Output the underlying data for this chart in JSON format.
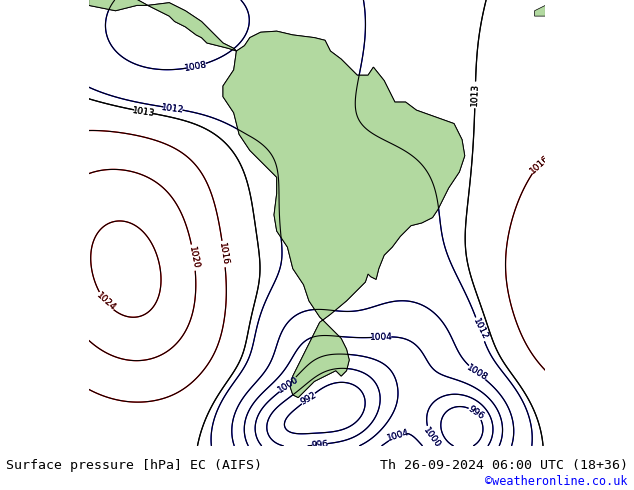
{
  "title_left": "Surface pressure [hPa] EC (AIFS)",
  "title_right": "Th 26-09-2024 06:00 UTC (18+36)",
  "copyright": "©weatheronline.co.uk",
  "bg_color": "#c8cdd4",
  "land_color": "#b2d9a0",
  "font_size_title": 9.5,
  "font_size_copy": 8.5,
  "figsize": [
    6.34,
    4.9
  ],
  "dpi": 100,
  "lon_min": -105,
  "lon_max": -20,
  "lat_min": -65,
  "lat_max": 18
}
